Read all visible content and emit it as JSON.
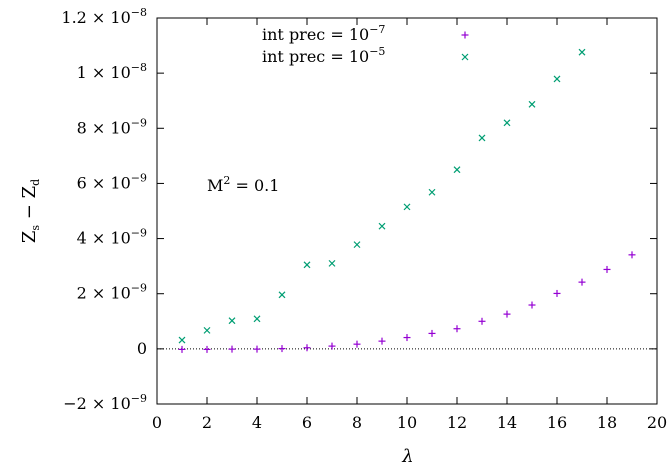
{
  "chart_data": {
    "type": "scatter",
    "title": "",
    "xlabel": "λ",
    "ylabel": {
      "base": "Z",
      "sub1": "s",
      "mid": " − Z",
      "sub2": "d"
    },
    "xlim": [
      0,
      20
    ],
    "ylim": [
      -2e-09,
      1.2e-08
    ],
    "x_ticks": [
      0,
      2,
      4,
      6,
      8,
      10,
      12,
      14,
      16,
      18,
      20
    ],
    "y_ticks": [
      {
        "value": -2e-09,
        "mantissa": "−2 × 10",
        "exp": "−9"
      },
      {
        "value": 0,
        "mantissa": "0",
        "exp": ""
      },
      {
        "value": 2e-09,
        "mantissa": "2 × 10",
        "exp": "−9"
      },
      {
        "value": 4e-09,
        "mantissa": "4 × 10",
        "exp": "−9"
      },
      {
        "value": 6e-09,
        "mantissa": "6 × 10",
        "exp": "−9"
      },
      {
        "value": 8e-09,
        "mantissa": "8 × 10",
        "exp": "−9"
      },
      {
        "value": 1e-08,
        "mantissa": "1 × 10",
        "exp": "−8"
      },
      {
        "value": 1.2e-08,
        "mantissa": "1.2 × 10",
        "exp": "−8"
      }
    ],
    "grid": false,
    "zero_line": true,
    "legend_position": "top-center",
    "annotation": {
      "base": "M",
      "exp": "2",
      "rest": " = 0.1"
    },
    "series": [
      {
        "name": "int prec  =  10",
        "name_exp": "−7",
        "marker": "plus",
        "color": "#9400d3",
        "x": [
          1,
          2,
          3,
          4,
          5,
          6,
          7,
          8,
          9,
          10,
          11,
          12,
          13,
          14,
          15,
          16,
          17,
          18,
          19
        ],
        "y": [
          -2e-11,
          -2e-11,
          -1e-11,
          -1e-11,
          1e-11,
          4e-11,
          1e-10,
          1.7e-10,
          2.8e-10,
          4.1e-10,
          5.6e-10,
          7.3e-10,
          1e-09,
          1.26e-09,
          1.59e-09,
          2.01e-09,
          2.42e-09,
          2.88e-09,
          3.41e-09
        ]
      },
      {
        "name": "int prec  =  10",
        "name_exp": "−5",
        "marker": "cross",
        "color": "#009e73",
        "x": [
          1,
          2,
          3,
          4,
          5,
          6,
          7,
          8,
          9,
          10,
          11,
          12,
          13,
          14,
          15,
          16,
          17
        ],
        "y": [
          3.2e-10,
          6.7e-10,
          1.02e-09,
          1.09e-09,
          1.96e-09,
          3.05e-09,
          3.1e-09,
          3.78e-09,
          4.45e-09,
          5.15e-09,
          5.68e-09,
          6.5e-09,
          7.65e-09,
          8.2e-09,
          8.87e-09,
          9.79e-09,
          1.076e-08
        ]
      }
    ]
  }
}
